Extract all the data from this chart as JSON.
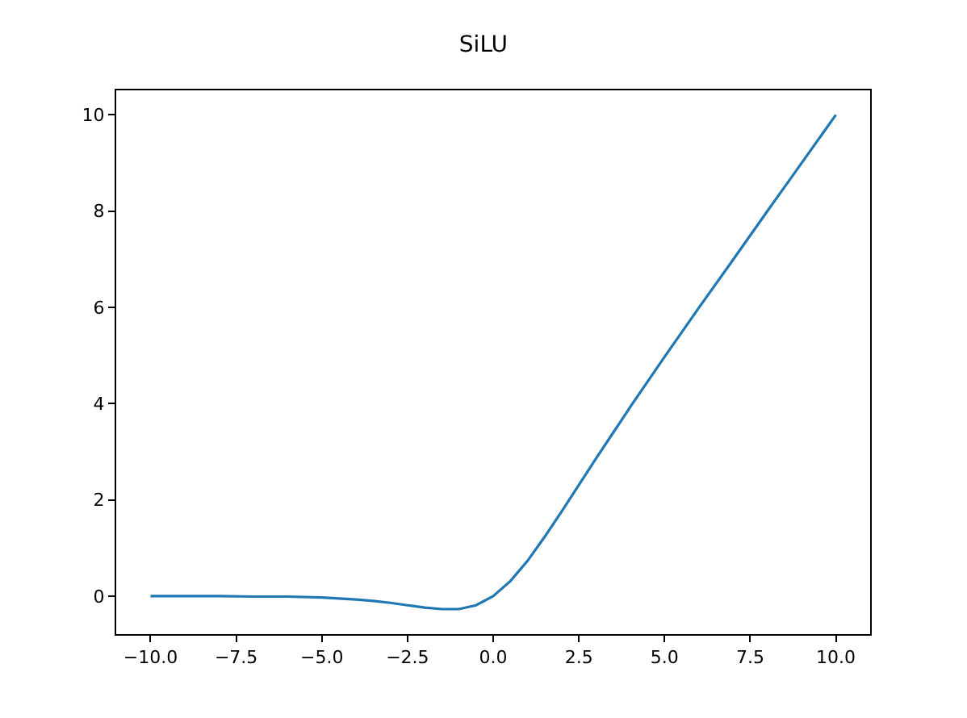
{
  "chart_data": {
    "type": "line",
    "title": "SiLU",
    "x": [
      -10,
      -9,
      -8,
      -7,
      -6,
      -5,
      -4,
      -3.5,
      -3,
      -2.5,
      -2,
      -1.5,
      -1,
      -0.5,
      0,
      0.5,
      1,
      1.5,
      2,
      2.5,
      3,
      4,
      5,
      6,
      7,
      8,
      9,
      10
    ],
    "series": [
      {
        "color": "#1f77b4",
        "values": [
          0.0,
          0.0,
          0.0,
          -0.01,
          -0.01,
          -0.03,
          -0.07,
          -0.1,
          -0.14,
          -0.19,
          -0.24,
          -0.27,
          -0.27,
          -0.19,
          0.0,
          0.31,
          0.73,
          1.23,
          1.76,
          2.31,
          2.86,
          3.93,
          4.97,
          5.99,
          6.99,
          8.0,
          9.0,
          10.0
        ]
      }
    ],
    "xlim": [
      -11,
      11
    ],
    "ylim": [
      -0.79,
      10.51
    ],
    "xticks": [
      {
        "value": -10,
        "label": "−10.0"
      },
      {
        "value": -7.5,
        "label": "−7.5"
      },
      {
        "value": -5,
        "label": "−5.0"
      },
      {
        "value": -2.5,
        "label": "−2.5"
      },
      {
        "value": 0,
        "label": "0.0"
      },
      {
        "value": 2.5,
        "label": "2.5"
      },
      {
        "value": 5,
        "label": "5.0"
      },
      {
        "value": 7.5,
        "label": "7.5"
      },
      {
        "value": 10,
        "label": "10.0"
      }
    ],
    "yticks": [
      0,
      2,
      4,
      6,
      8,
      10
    ],
    "grid": false,
    "marker": "none",
    "line_style": "solid"
  }
}
